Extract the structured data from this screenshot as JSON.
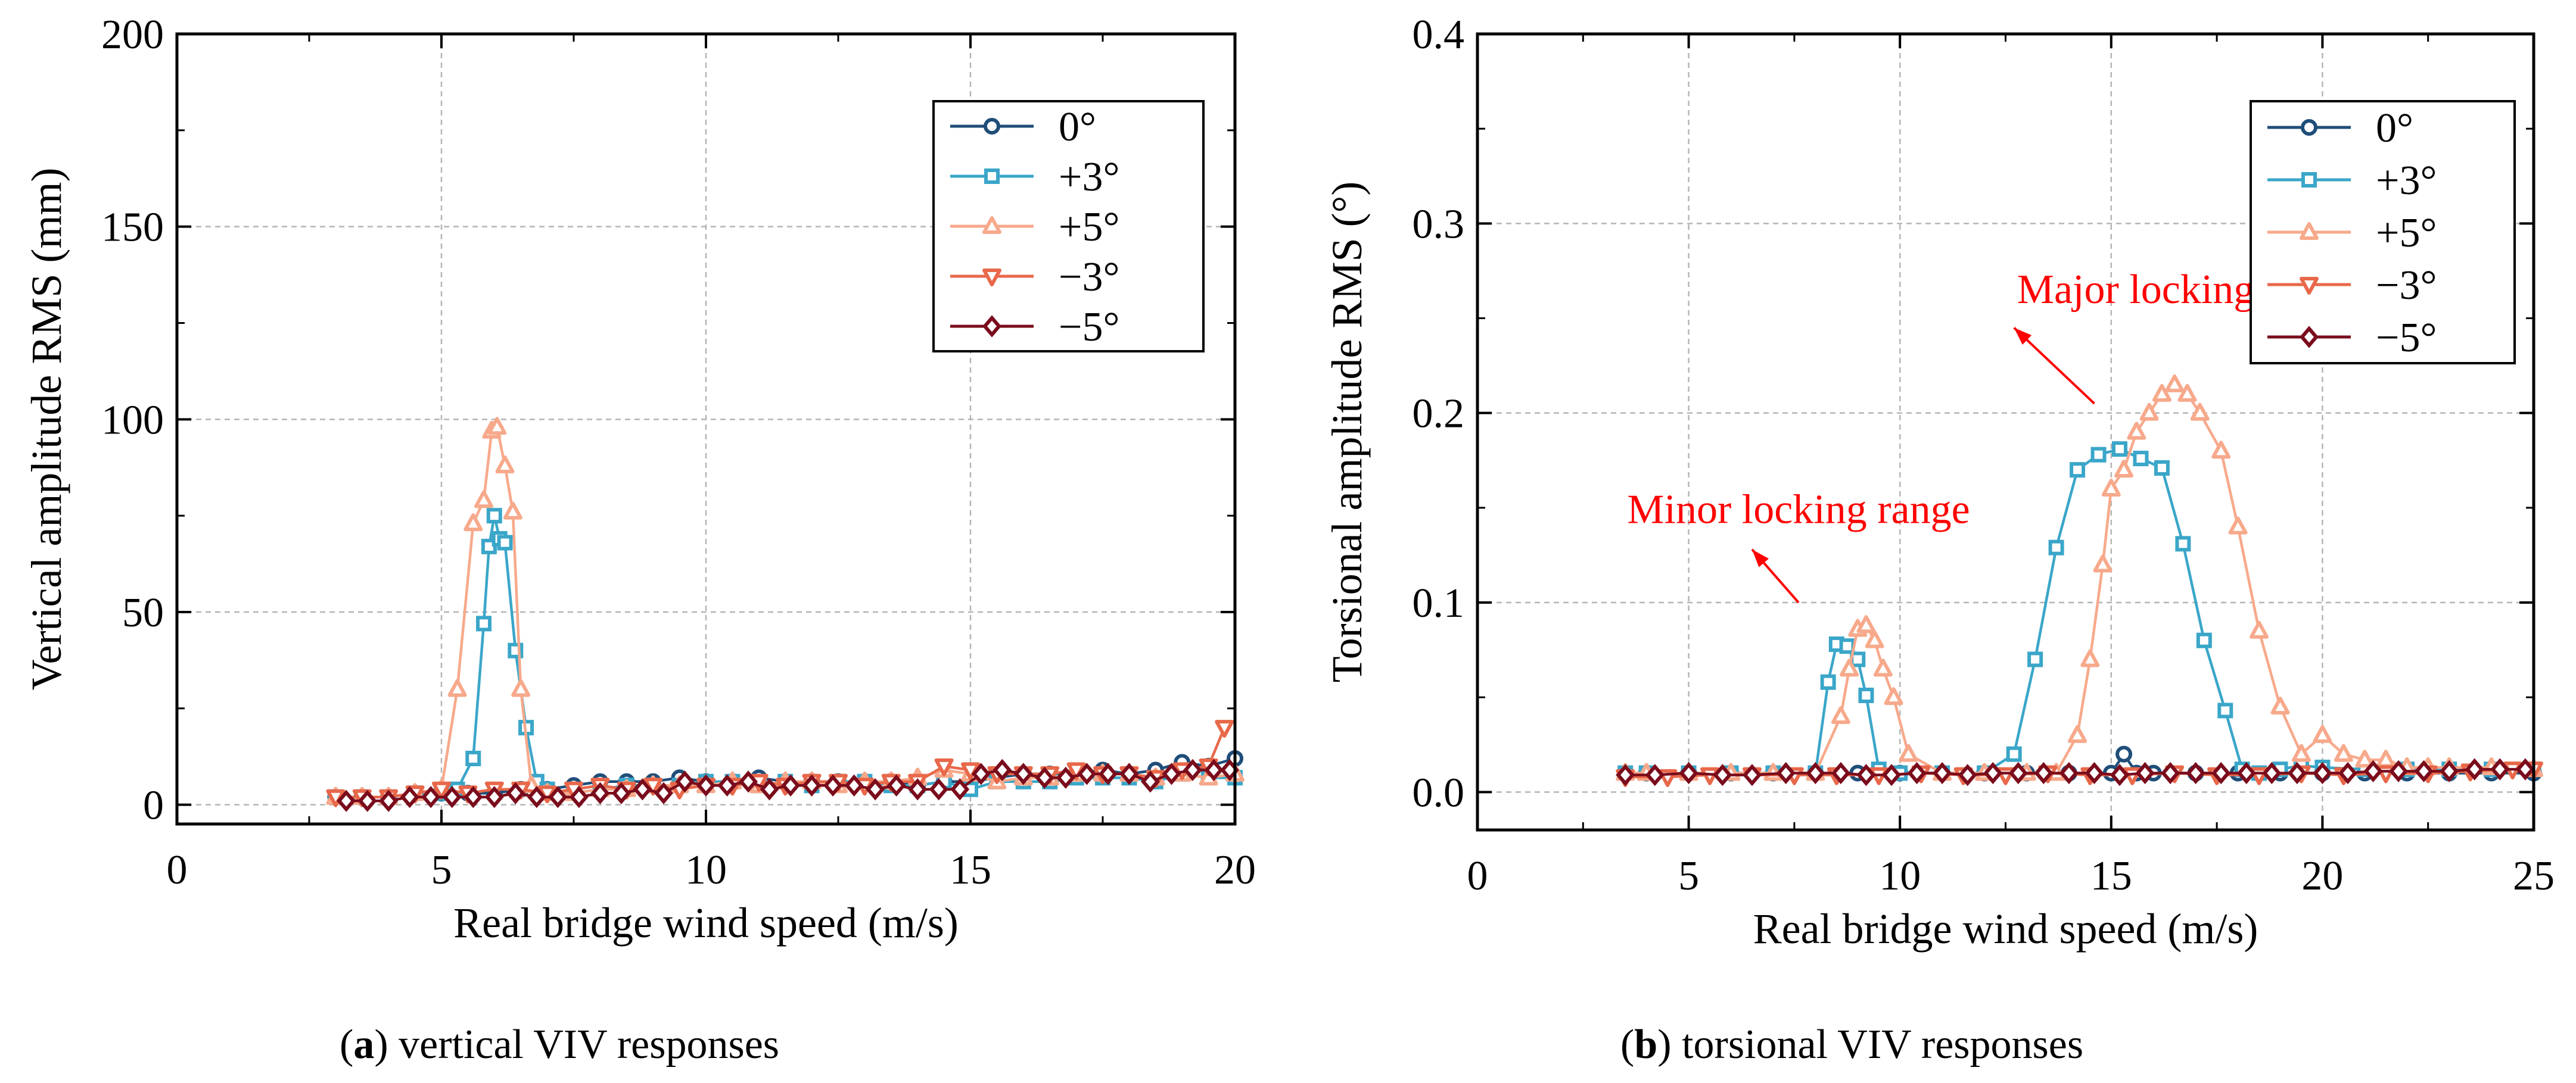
{
  "chart_data": [
    {
      "type": "line",
      "panel_caption": {
        "label": "a",
        "text": " vertical VIV responses"
      },
      "xlabel": "Real bridge wind speed (m/s)",
      "ylabel": "Vertical amplitude RMS (mm)",
      "xlim": [
        0,
        20
      ],
      "ylim": [
        -5,
        200
      ],
      "xticks": [
        0,
        5,
        10,
        15,
        20
      ],
      "yticks": [
        0,
        50,
        100,
        150,
        200
      ],
      "xtick_labels": [
        "0",
        "5",
        "10",
        "15",
        "20"
      ],
      "ytick_labels": [
        "0",
        "50",
        "100",
        "150",
        "200"
      ],
      "grid": true,
      "legend_position": "top-right",
      "annotations": [],
      "series": [
        {
          "name": "0°",
          "color": "#1f4e79",
          "marker": "circle",
          "x": [
            3.0,
            3.5,
            4.0,
            4.5,
            5.0,
            5.5,
            6.0,
            6.5,
            7.0,
            7.5,
            8.0,
            8.5,
            9.0,
            9.5,
            10.0,
            10.5,
            11.0,
            11.5,
            12.0,
            12.5,
            13.0,
            13.5,
            14.0,
            14.5,
            15.0,
            15.5,
            16.0,
            16.5,
            17.0,
            17.5,
            18.0,
            18.5,
            19.0,
            19.5,
            20.0
          ],
          "y": [
            2,
            2,
            2,
            3,
            3,
            3,
            3,
            4,
            4,
            5,
            6,
            6,
            6,
            7,
            6,
            6,
            7,
            6,
            6,
            6,
            6,
            6,
            5,
            6,
            6,
            7,
            8,
            8,
            8,
            9,
            8,
            9,
            11,
            10,
            12
          ]
        },
        {
          "name": "+3°",
          "color": "#3aa6c9",
          "marker": "square",
          "x": [
            3.0,
            3.5,
            4.0,
            4.5,
            5.0,
            5.3,
            5.6,
            5.8,
            5.9,
            6.0,
            6.1,
            6.2,
            6.4,
            6.6,
            6.8,
            7.0,
            7.5,
            8.0,
            8.5,
            9.0,
            9.5,
            10.0,
            10.5,
            11.0,
            11.5,
            12.0,
            12.5,
            13.0,
            13.5,
            14.0,
            14.5,
            15.0,
            15.5,
            16.0,
            16.5,
            17.0,
            17.5,
            18.0,
            18.5,
            19.0,
            19.5,
            20.0
          ],
          "y": [
            2,
            2,
            2,
            3,
            3,
            4,
            12,
            47,
            67,
            75,
            69,
            68,
            40,
            20,
            6,
            4,
            3,
            4,
            5,
            5,
            5,
            6,
            6,
            5,
            6,
            5,
            6,
            6,
            5,
            5,
            6,
            4,
            6,
            6,
            6,
            7,
            7,
            7,
            6,
            8,
            7,
            7
          ]
        },
        {
          "name": "+5°",
          "color": "#f7a98b",
          "marker": "triangle-up",
          "x": [
            3.0,
            3.5,
            4.0,
            4.5,
            5.0,
            5.3,
            5.6,
            5.8,
            5.95,
            6.05,
            6.2,
            6.35,
            6.5,
            6.7,
            7.0,
            7.5,
            8.0,
            8.5,
            9.0,
            9.5,
            10.0,
            10.5,
            11.0,
            11.5,
            12.0,
            12.5,
            13.0,
            13.5,
            14.0,
            14.5,
            15.0,
            15.5,
            16.0,
            16.5,
            17.0,
            17.5,
            18.0,
            18.5,
            19.0,
            19.5,
            20.0
          ],
          "y": [
            2,
            2,
            2,
            3,
            4,
            30,
            73,
            79,
            97,
            98,
            88,
            76,
            30,
            5,
            3,
            3,
            4,
            4,
            5,
            5,
            5,
            6,
            5,
            6,
            6,
            5,
            6,
            6,
            7,
            9,
            8,
            6,
            7,
            7,
            8,
            8,
            8,
            7,
            8,
            7,
            8
          ]
        },
        {
          "name": "−3°",
          "color": "#e8684a",
          "marker": "triangle-down",
          "x": [
            3.0,
            3.5,
            4.0,
            4.5,
            5.0,
            5.5,
            6.0,
            6.5,
            7.0,
            7.5,
            8.0,
            8.5,
            9.0,
            9.5,
            10.0,
            10.5,
            11.0,
            11.5,
            12.0,
            12.5,
            13.0,
            13.5,
            14.0,
            14.5,
            15.0,
            15.5,
            16.0,
            16.5,
            17.0,
            17.5,
            18.0,
            18.5,
            19.0,
            19.5,
            19.8
          ],
          "y": [
            2,
            2,
            2,
            3,
            4,
            3,
            4,
            4,
            3,
            4,
            5,
            4,
            5,
            4,
            5,
            5,
            6,
            5,
            6,
            6,
            5,
            6,
            6,
            10,
            9,
            8,
            8,
            8,
            9,
            8,
            8,
            7,
            9,
            10,
            20
          ]
        },
        {
          "name": "−5°",
          "color": "#7a0c1c",
          "marker": "diamond",
          "x": [
            3.2,
            3.6,
            4.0,
            4.4,
            4.8,
            5.2,
            5.6,
            6.0,
            6.4,
            6.8,
            7.2,
            7.6,
            8.0,
            8.4,
            8.8,
            9.2,
            9.6,
            10.0,
            10.4,
            10.8,
            11.2,
            11.6,
            12.0,
            12.4,
            12.8,
            13.2,
            13.6,
            14.0,
            14.4,
            14.8,
            15.2,
            15.6,
            16.0,
            16.4,
            16.8,
            17.2,
            17.6,
            18.0,
            18.4,
            18.8,
            19.2,
            19.6,
            19.9
          ],
          "y": [
            1,
            1,
            1,
            2,
            2,
            2,
            2,
            2,
            3,
            2,
            2,
            2,
            3,
            3,
            4,
            3,
            6,
            5,
            5,
            6,
            4,
            5,
            5,
            5,
            5,
            4,
            5,
            4,
            4,
            4,
            8,
            9,
            8,
            7,
            7,
            8,
            8,
            8,
            6,
            8,
            9,
            9,
            9
          ]
        }
      ]
    },
    {
      "type": "line",
      "panel_caption": {
        "label": "b",
        "text": " torsional VIV responses"
      },
      "xlabel": "Real bridge wind speed (m/s)",
      "ylabel": "Torsional amplitude RMS (°)",
      "xlim": [
        0,
        25
      ],
      "ylim": [
        -0.02,
        0.4
      ],
      "xticks": [
        0,
        5,
        10,
        15,
        20,
        25
      ],
      "yticks": [
        0.0,
        0.1,
        0.2,
        0.3,
        0.4
      ],
      "xtick_labels": [
        "0",
        "5",
        "10",
        "15",
        "20",
        "25"
      ],
      "ytick_labels": [
        "0.0",
        "0.1",
        "0.2",
        "0.3",
        "0.4"
      ],
      "grid": true,
      "legend_position": "top-right",
      "annotations": [
        {
          "text": "Major locking range",
          "color": "#ff0000",
          "arrow_from": [
            14.6,
            0.205
          ],
          "arrow_to": [
            12.7,
            0.245
          ],
          "text_at": [
            16.8,
            0.258
          ]
        },
        {
          "text": "Minor locking range",
          "color": "#ff0000",
          "arrow_from": [
            7.6,
            0.1
          ],
          "arrow_to": [
            6.5,
            0.128
          ],
          "text_at": [
            7.6,
            0.142
          ]
        }
      ],
      "series": [
        {
          "name": "0°",
          "color": "#1f4e79",
          "marker": "circle",
          "x": [
            3.5,
            4.0,
            5.0,
            6.0,
            7.0,
            8.0,
            9.0,
            10.0,
            11.0,
            12.0,
            13.0,
            14.0,
            15.0,
            15.3,
            15.6,
            16.0,
            17.0,
            18.0,
            19.0,
            20.0,
            21.0,
            22.0,
            23.0,
            24.0,
            25.0
          ],
          "y": [
            0.01,
            0.01,
            0.01,
            0.01,
            0.01,
            0.01,
            0.01,
            0.01,
            0.01,
            0.01,
            0.01,
            0.01,
            0.01,
            0.02,
            0.01,
            0.01,
            0.01,
            0.01,
            0.01,
            0.01,
            0.01,
            0.01,
            0.01,
            0.01,
            0.01
          ]
        },
        {
          "name": "+3°",
          "color": "#3aa6c9",
          "marker": "square",
          "x": [
            3.5,
            4.0,
            5.0,
            6.0,
            7.0,
            8.0,
            8.3,
            8.5,
            8.75,
            9.0,
            9.2,
            9.5,
            10.0,
            11.0,
            12.0,
            12.7,
            13.2,
            13.7,
            14.2,
            14.7,
            15.2,
            15.7,
            16.2,
            16.7,
            17.2,
            17.7,
            18.1,
            18.5,
            19.0,
            19.5,
            20.0,
            21.0,
            22.0,
            23.0,
            24.0,
            25.0
          ],
          "y": [
            0.01,
            0.01,
            0.01,
            0.01,
            0.01,
            0.01,
            0.058,
            0.078,
            0.077,
            0.07,
            0.051,
            0.012,
            0.01,
            0.01,
            0.01,
            0.02,
            0.07,
            0.129,
            0.17,
            0.178,
            0.181,
            0.176,
            0.171,
            0.131,
            0.08,
            0.043,
            0.012,
            0.01,
            0.012,
            0.014,
            0.013,
            0.012,
            0.012,
            0.012,
            0.012,
            0.012
          ]
        },
        {
          "name": "+5°",
          "color": "#f7a98b",
          "marker": "triangle-up",
          "x": [
            3.5,
            4.0,
            5.0,
            6.0,
            7.0,
            8.0,
            8.6,
            8.8,
            9.0,
            9.2,
            9.4,
            9.6,
            9.85,
            10.2,
            11.0,
            12.0,
            13.0,
            13.7,
            14.2,
            14.5,
            14.8,
            15.0,
            15.3,
            15.6,
            15.9,
            16.2,
            16.5,
            16.8,
            17.1,
            17.6,
            18.0,
            18.5,
            19.0,
            19.5,
            20.0,
            20.5,
            21.0,
            21.5,
            22.0,
            22.5,
            23.0,
            24.0,
            25.0
          ],
          "y": [
            0.01,
            0.01,
            0.01,
            0.01,
            0.01,
            0.01,
            0.04,
            0.065,
            0.086,
            0.088,
            0.08,
            0.065,
            0.05,
            0.02,
            0.01,
            0.01,
            0.01,
            0.01,
            0.03,
            0.07,
            0.12,
            0.16,
            0.17,
            0.19,
            0.2,
            0.21,
            0.215,
            0.21,
            0.2,
            0.18,
            0.14,
            0.085,
            0.045,
            0.02,
            0.03,
            0.02,
            0.017,
            0.017,
            0.013,
            0.013,
            0.013,
            0.013,
            0.012
          ]
        },
        {
          "name": "−3°",
          "color": "#e8684a",
          "marker": "triangle-down",
          "x": [
            3.5,
            4.5,
            5.5,
            6.5,
            7.5,
            8.5,
            9.5,
            10.5,
            11.5,
            12.5,
            13.5,
            14.5,
            15.5,
            16.5,
            17.5,
            18.5,
            19.5,
            20.5,
            21.5,
            22.5,
            23.5,
            24.5,
            25.0
          ],
          "y": [
            0.008,
            0.008,
            0.009,
            0.009,
            0.009,
            0.009,
            0.009,
            0.01,
            0.009,
            0.009,
            0.01,
            0.009,
            0.009,
            0.01,
            0.009,
            0.009,
            0.01,
            0.009,
            0.01,
            0.01,
            0.011,
            0.012,
            0.012
          ]
        },
        {
          "name": "−5°",
          "color": "#7a0c1c",
          "marker": "diamond",
          "x": [
            3.5,
            4.2,
            5.0,
            5.8,
            6.5,
            7.3,
            8.0,
            8.6,
            9.2,
            9.8,
            10.4,
            11.0,
            11.6,
            12.2,
            12.8,
            13.4,
            14.0,
            14.6,
            15.2,
            15.8,
            16.4,
            17.0,
            17.6,
            18.2,
            18.8,
            19.4,
            20.0,
            20.6,
            21.2,
            21.8,
            22.4,
            23.0,
            23.6,
            24.2,
            24.8
          ],
          "y": [
            0.009,
            0.009,
            0.01,
            0.009,
            0.009,
            0.01,
            0.01,
            0.01,
            0.009,
            0.009,
            0.01,
            0.01,
            0.009,
            0.01,
            0.01,
            0.01,
            0.01,
            0.01,
            0.009,
            0.01,
            0.01,
            0.01,
            0.01,
            0.01,
            0.01,
            0.01,
            0.01,
            0.01,
            0.011,
            0.011,
            0.011,
            0.011,
            0.012,
            0.012,
            0.012
          ]
        }
      ]
    }
  ]
}
